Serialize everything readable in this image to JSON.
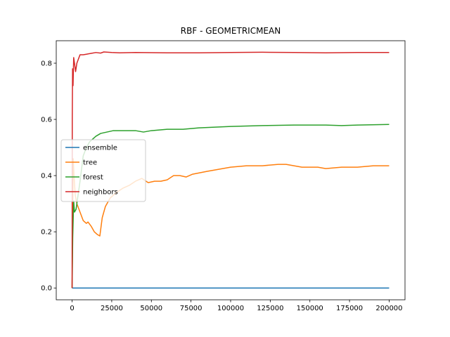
{
  "chart_data": {
    "type": "line",
    "title": "RBF - GEOMETRICMEAN",
    "xlabel": "",
    "ylabel": "",
    "xlim": [
      -10000,
      210000
    ],
    "ylim": [
      -0.042,
      0.88
    ],
    "xticks": [
      0,
      25000,
      50000,
      75000,
      100000,
      125000,
      150000,
      175000,
      200000
    ],
    "yticks": [
      0.0,
      0.2,
      0.4,
      0.6,
      0.8
    ],
    "xtick_labels": [
      "0",
      "25000",
      "50000",
      "75000",
      "100000",
      "125000",
      "150000",
      "175000",
      "200000"
    ],
    "ytick_labels": [
      "0.0",
      "0.2",
      "0.4",
      "0.6",
      "0.8"
    ],
    "grid": false,
    "legend": "center-left",
    "series": [
      {
        "name": "ensemble",
        "color": "#1f77b4",
        "points": [
          [
            0,
            0.0
          ],
          [
            200000,
            0.0
          ]
        ]
      },
      {
        "name": "tree",
        "color": "#ff7f0e",
        "points": [
          [
            0,
            0.0
          ],
          [
            300,
            0.2
          ],
          [
            700,
            0.46
          ],
          [
            1200,
            0.4
          ],
          [
            2000,
            0.33
          ],
          [
            3000,
            0.3
          ],
          [
            5000,
            0.27
          ],
          [
            7000,
            0.24
          ],
          [
            9000,
            0.23
          ],
          [
            10000,
            0.235
          ],
          [
            12000,
            0.22
          ],
          [
            14000,
            0.2
          ],
          [
            16000,
            0.19
          ],
          [
            17500,
            0.185
          ],
          [
            19000,
            0.25
          ],
          [
            21000,
            0.29
          ],
          [
            24000,
            0.32
          ],
          [
            28000,
            0.34
          ],
          [
            32000,
            0.355
          ],
          [
            36000,
            0.365
          ],
          [
            40000,
            0.38
          ],
          [
            44000,
            0.39
          ],
          [
            48000,
            0.375
          ],
          [
            52000,
            0.38
          ],
          [
            56000,
            0.38
          ],
          [
            60000,
            0.385
          ],
          [
            64000,
            0.4
          ],
          [
            68000,
            0.4
          ],
          [
            72000,
            0.395
          ],
          [
            76000,
            0.405
          ],
          [
            85000,
            0.415
          ],
          [
            95000,
            0.425
          ],
          [
            100000,
            0.43
          ],
          [
            110000,
            0.435
          ],
          [
            120000,
            0.435
          ],
          [
            130000,
            0.44
          ],
          [
            135000,
            0.44
          ],
          [
            140000,
            0.435
          ],
          [
            145000,
            0.43
          ],
          [
            155000,
            0.43
          ],
          [
            160000,
            0.425
          ],
          [
            170000,
            0.43
          ],
          [
            180000,
            0.43
          ],
          [
            190000,
            0.435
          ],
          [
            200000,
            0.435
          ]
        ]
      },
      {
        "name": "forest",
        "color": "#2ca02c",
        "points": [
          [
            0,
            0.0
          ],
          [
            400,
            0.18
          ],
          [
            1000,
            0.31
          ],
          [
            1500,
            0.27
          ],
          [
            2500,
            0.28
          ],
          [
            3500,
            0.32
          ],
          [
            5000,
            0.38
          ],
          [
            7000,
            0.47
          ],
          [
            9000,
            0.5
          ],
          [
            11000,
            0.52
          ],
          [
            13000,
            0.53
          ],
          [
            15000,
            0.54
          ],
          [
            18000,
            0.55
          ],
          [
            22000,
            0.555
          ],
          [
            26000,
            0.56
          ],
          [
            30000,
            0.56
          ],
          [
            35000,
            0.56
          ],
          [
            40000,
            0.56
          ],
          [
            45000,
            0.555
          ],
          [
            50000,
            0.56
          ],
          [
            60000,
            0.565
          ],
          [
            70000,
            0.565
          ],
          [
            80000,
            0.57
          ],
          [
            100000,
            0.575
          ],
          [
            120000,
            0.578
          ],
          [
            140000,
            0.58
          ],
          [
            160000,
            0.58
          ],
          [
            170000,
            0.578
          ],
          [
            180000,
            0.58
          ],
          [
            200000,
            0.582
          ]
        ]
      },
      {
        "name": "neighbors",
        "color": "#d62728",
        "points": [
          [
            0,
            0.0
          ],
          [
            100,
            0.6
          ],
          [
            300,
            0.78
          ],
          [
            600,
            0.72
          ],
          [
            1000,
            0.82
          ],
          [
            1500,
            0.8
          ],
          [
            2200,
            0.77
          ],
          [
            3000,
            0.8
          ],
          [
            4000,
            0.815
          ],
          [
            5000,
            0.83
          ],
          [
            7000,
            0.83
          ],
          [
            9000,
            0.832
          ],
          [
            12000,
            0.835
          ],
          [
            15000,
            0.838
          ],
          [
            18000,
            0.836
          ],
          [
            20000,
            0.84
          ],
          [
            25000,
            0.838
          ],
          [
            30000,
            0.837
          ],
          [
            40000,
            0.838
          ],
          [
            60000,
            0.837
          ],
          [
            80000,
            0.837
          ],
          [
            100000,
            0.838
          ],
          [
            120000,
            0.839
          ],
          [
            140000,
            0.838
          ],
          [
            160000,
            0.837
          ],
          [
            180000,
            0.838
          ],
          [
            200000,
            0.838
          ]
        ]
      }
    ]
  }
}
